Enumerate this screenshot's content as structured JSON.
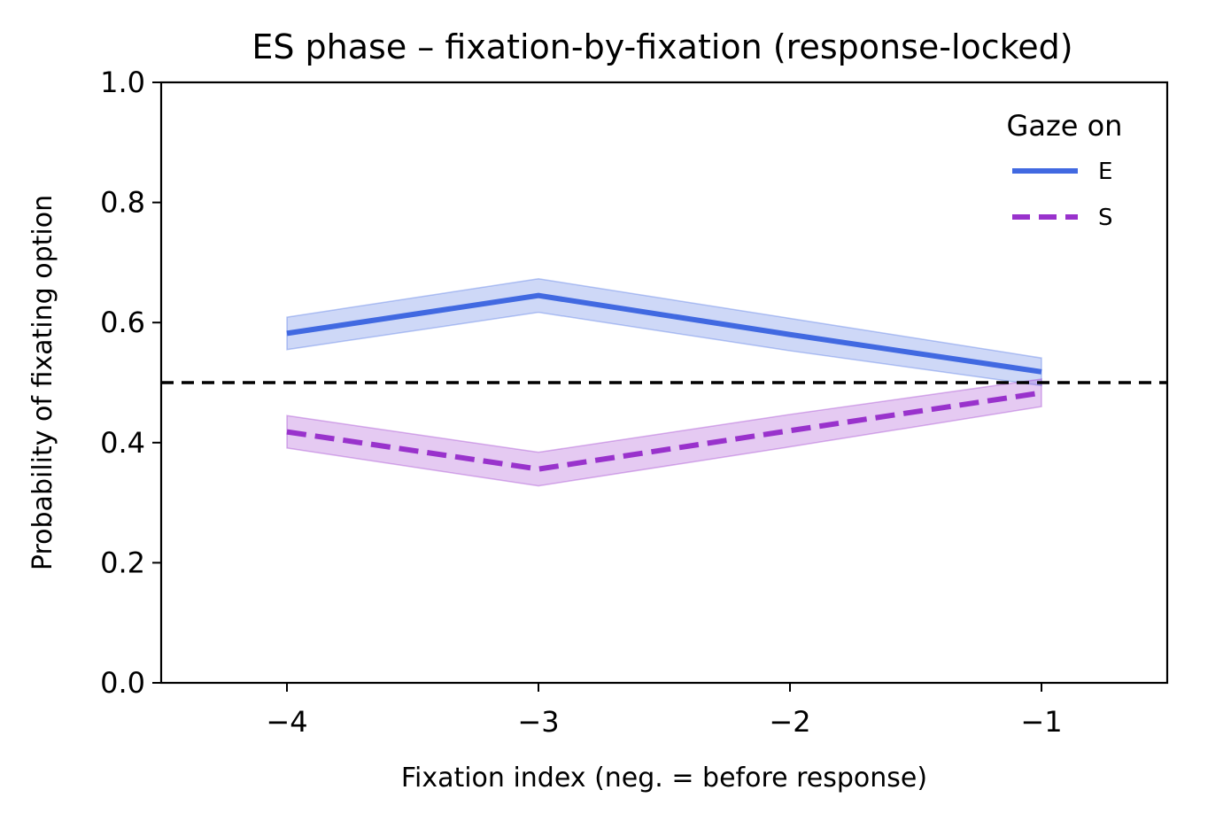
{
  "chart_data": {
    "type": "line",
    "title": "ES phase – fixation-by-fixation (response-locked)",
    "xlabel": "Fixation index (neg. = before response)",
    "ylabel": "Probability of fixating option",
    "xlim": [
      -4.5,
      -0.5
    ],
    "ylim": [
      0.0,
      1.0
    ],
    "x": [
      -4,
      -3,
      -2,
      -1
    ],
    "xticks": [
      -4,
      -3,
      -2,
      -1
    ],
    "xtick_labels": [
      "−4",
      "−3",
      "−2",
      "−1"
    ],
    "yticks": [
      0.0,
      0.2,
      0.4,
      0.6,
      0.8,
      1.0
    ],
    "ytick_labels": [
      "0.0",
      "0.2",
      "0.4",
      "0.6",
      "0.8",
      "1.0"
    ],
    "reference_line": {
      "y": 0.5,
      "style": "dashed",
      "color": "#000000"
    },
    "grid": false,
    "legend": {
      "title": "Gaze on",
      "position": "top-right"
    },
    "series": [
      {
        "name": "E",
        "values": [
          0.582,
          0.645,
          0.58,
          0.518
        ],
        "lower": [
          0.555,
          0.617,
          0.553,
          0.495
        ],
        "upper": [
          0.609,
          0.673,
          0.607,
          0.541
        ],
        "color": "#4169E1",
        "style": "solid"
      },
      {
        "name": "S",
        "values": [
          0.418,
          0.356,
          0.42,
          0.483
        ],
        "lower": [
          0.391,
          0.328,
          0.393,
          0.46
        ],
        "upper": [
          0.445,
          0.384,
          0.447,
          0.506
        ],
        "color": "#9932CC",
        "style": "dashed"
      }
    ]
  }
}
